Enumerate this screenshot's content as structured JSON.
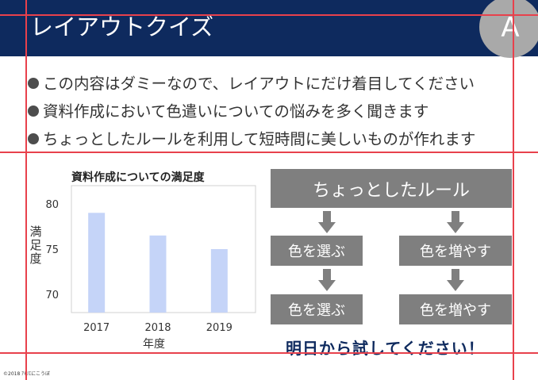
{
  "header": {
    "title": "レイアウトクイズ",
    "badge": "A"
  },
  "bullets": [
    "この内容はダミーなので、レイアウトにだけ着目してください",
    "資料作成において色遣いについての悩みを多く聞きます",
    "ちょっとしたルールを利用して短時間に美しいものが作れます"
  ],
  "chart_data": {
    "type": "bar",
    "title": "資料作成についての満足度",
    "categories": [
      "2017",
      "2018",
      "2019"
    ],
    "values": [
      79,
      76.5,
      75
    ],
    "xlabel": "年度",
    "ylabel": "満足度",
    "ylim": [
      68,
      82
    ],
    "yticks": [
      70,
      75,
      80
    ],
    "grid": false,
    "bar_color": "#c5d4f8"
  },
  "flow": {
    "top": "ちょっとしたルール",
    "left": [
      "色を選ぶ",
      "色を選ぶ"
    ],
    "right": [
      "色を増やす",
      "色を増やす"
    ]
  },
  "cta": "明日から試してください！",
  "footer": {
    "copyright": "©2018 ｱﾄﾘｴにこうぼ"
  },
  "colors": {
    "header_bg": "#0e2a5e",
    "guide": "#e8414c",
    "box": "#7f7f7f",
    "cta": "#0e2a5e"
  }
}
